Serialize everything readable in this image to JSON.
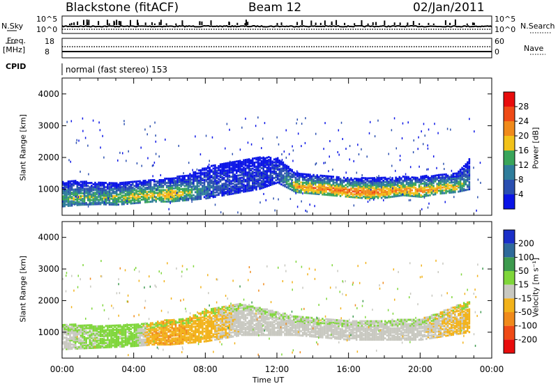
{
  "header": {
    "station": "Blackstone (fitACF)",
    "beam": "Beam 12",
    "date": "02/Jan/2011"
  },
  "aux": {
    "nsky_label": "N.Sky",
    "nsky_ticks": [
      "10^5",
      "10^0"
    ],
    "nsearch_label": "N.Search",
    "nsearch_ticks": [
      "10^5",
      "10^0"
    ],
    "freq_label": "Freq.",
    "freq_unit": "[MHz]",
    "freq_ticks": [
      "18",
      "8"
    ],
    "nave_label": "Nave",
    "nave_ticks": [
      "60",
      "0"
    ],
    "cpid_label": "CPID",
    "cpid_value": "normal (fast stereo) 153"
  },
  "chart_data": [
    {
      "type": "heatmap",
      "title": "",
      "quantity": "Power",
      "xlabel": "",
      "ylabel": "Slant Range [km]",
      "xlim": [
        0,
        24
      ],
      "ylim": [
        180,
        4500
      ],
      "y_ticks": [
        "4000",
        "3000",
        "2000",
        "1000"
      ],
      "colorbar": {
        "label": "Power [dB]",
        "ticks": [
          "28",
          "24",
          "20",
          "16",
          "12",
          "8",
          "4"
        ],
        "bins": [
          {
            "min": 0,
            "max": 4,
            "color": "#0a14e6"
          },
          {
            "min": 4,
            "max": 8,
            "color": "#2a4fb0"
          },
          {
            "min": 8,
            "max": 12,
            "color": "#2f7d9b"
          },
          {
            "min": 12,
            "max": 16,
            "color": "#3aa55a"
          },
          {
            "min": 16,
            "max": 20,
            "color": "#f2c21a"
          },
          {
            "min": 20,
            "max": 24,
            "color": "#f08a1b"
          },
          {
            "min": 24,
            "max": 28,
            "color": "#ef4a16"
          },
          {
            "min": 28,
            "max": 32,
            "color": "#e80c0c"
          }
        ]
      },
      "echo_band": [
        {
          "t": 0.0,
          "lo": 450,
          "hi": 1250,
          "power": 14
        },
        {
          "t": 1.0,
          "lo": 500,
          "hi": 1250,
          "power": 16
        },
        {
          "t": 2.0,
          "lo": 520,
          "hi": 1200,
          "power": 15
        },
        {
          "t": 3.0,
          "lo": 500,
          "hi": 1200,
          "power": 16
        },
        {
          "t": 4.0,
          "lo": 550,
          "hi": 1250,
          "power": 18
        },
        {
          "t": 5.0,
          "lo": 600,
          "hi": 1300,
          "power": 19
        },
        {
          "t": 6.0,
          "lo": 600,
          "hi": 1350,
          "power": 21
        },
        {
          "t": 7.0,
          "lo": 650,
          "hi": 1450,
          "power": 16
        },
        {
          "t": 8.0,
          "lo": 700,
          "hi": 1700,
          "power": 9
        },
        {
          "t": 9.0,
          "lo": 800,
          "hi": 1800,
          "power": 6
        },
        {
          "t": 10.0,
          "lo": 900,
          "hi": 1900,
          "power": 5
        },
        {
          "t": 11.0,
          "lo": 1000,
          "hi": 2000,
          "power": 5
        },
        {
          "t": 12.0,
          "lo": 1200,
          "hi": 2000,
          "power": 5
        },
        {
          "t": 13.0,
          "lo": 900,
          "hi": 1500,
          "power": 21
        },
        {
          "t": 14.0,
          "lo": 850,
          "hi": 1450,
          "power": 23
        },
        {
          "t": 15.0,
          "lo": 800,
          "hi": 1400,
          "power": 24
        },
        {
          "t": 16.0,
          "lo": 750,
          "hi": 1350,
          "power": 25
        },
        {
          "t": 17.0,
          "lo": 700,
          "hi": 1350,
          "power": 25
        },
        {
          "t": 18.0,
          "lo": 720,
          "hi": 1350,
          "power": 23
        },
        {
          "t": 19.0,
          "lo": 800,
          "hi": 1400,
          "power": 22
        },
        {
          "t": 20.0,
          "lo": 750,
          "hi": 1400,
          "power": 23
        },
        {
          "t": 21.0,
          "lo": 850,
          "hi": 1450,
          "power": 21
        },
        {
          "t": 22.0,
          "lo": 900,
          "hi": 1500,
          "power": 18
        },
        {
          "t": 22.8,
          "lo": 1000,
          "hi": 2000,
          "power": 8
        }
      ]
    },
    {
      "type": "heatmap",
      "title": "",
      "quantity": "Velocity",
      "xlabel": "Time UT",
      "ylabel": "Slant Range [km]",
      "xlim": [
        0,
        24
      ],
      "ylim": [
        180,
        4500
      ],
      "x_ticks": [
        "00:00",
        "04:00",
        "08:00",
        "12:00",
        "16:00",
        "20:00",
        "00:00"
      ],
      "y_ticks": [
        "4000",
        "3000",
        "2000",
        "1000"
      ],
      "colorbar": {
        "label": "Velocity [m s⁻¹]",
        "ticks": [
          "200",
          "100",
          "50",
          "15",
          "-15",
          "-50",
          "-100",
          "-200"
        ],
        "bins": [
          {
            "min": 200,
            "max": 300,
            "color": "#1b2fc8"
          },
          {
            "min": 100,
            "max": 200,
            "color": "#2f6a9a"
          },
          {
            "min": 50,
            "max": 100,
            "color": "#3d9a4e"
          },
          {
            "min": 15,
            "max": 50,
            "color": "#7fd63a"
          },
          {
            "min": -15,
            "max": 15,
            "color": "#c8c8c0"
          },
          {
            "min": -50,
            "max": -15,
            "color": "#f2b21a"
          },
          {
            "min": -100,
            "max": -50,
            "color": "#f08a1b"
          },
          {
            "min": -200,
            "max": -100,
            "color": "#ef4a16"
          },
          {
            "min": -300,
            "max": -200,
            "color": "#e80c0c"
          }
        ]
      },
      "echo_band": [
        {
          "t": 0.0,
          "lo": 450,
          "hi": 1250,
          "velocity": 0
        },
        {
          "t": 2.0,
          "lo": 500,
          "hi": 1200,
          "velocity": 25
        },
        {
          "t": 4.0,
          "lo": 550,
          "hi": 1250,
          "velocity": 30
        },
        {
          "t": 5.0,
          "lo": 600,
          "hi": 1300,
          "velocity": -40
        },
        {
          "t": 6.0,
          "lo": 600,
          "hi": 1400,
          "velocity": -45
        },
        {
          "t": 7.0,
          "lo": 650,
          "hi": 1450,
          "velocity": -40
        },
        {
          "t": 8.0,
          "lo": 700,
          "hi": 1700,
          "velocity": -30
        },
        {
          "t": 10.0,
          "lo": 900,
          "hi": 1900,
          "velocity": 0
        },
        {
          "t": 13.0,
          "lo": 900,
          "hi": 1500,
          "velocity": 0
        },
        {
          "t": 16.0,
          "lo": 750,
          "hi": 1350,
          "velocity": 0
        },
        {
          "t": 20.0,
          "lo": 750,
          "hi": 1400,
          "velocity": 0
        },
        {
          "t": 22.8,
          "lo": 1000,
          "hi": 2000,
          "velocity": -30
        }
      ]
    }
  ]
}
